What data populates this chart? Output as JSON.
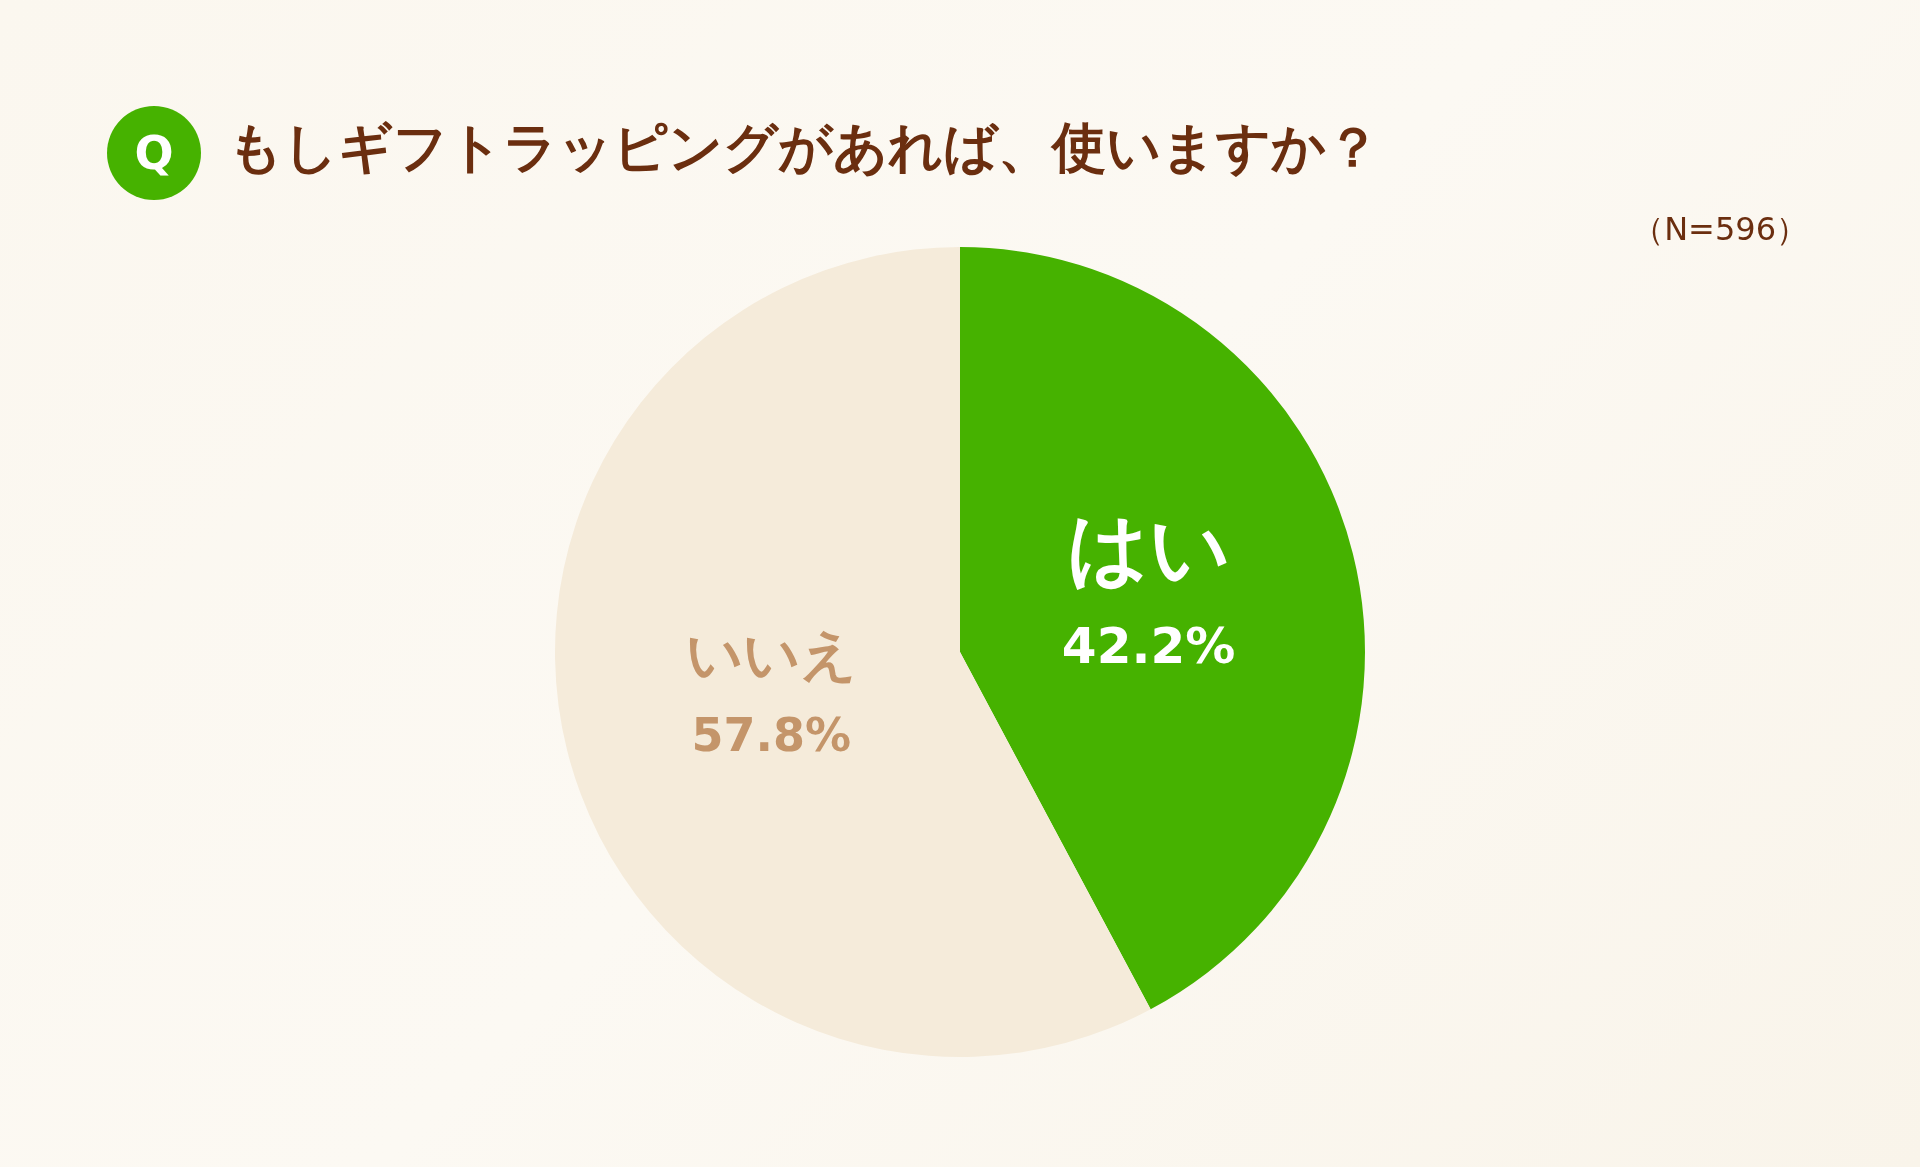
{
  "chart_data": {
    "type": "pie",
    "title": "もしギフトラッピングがあれば、使いますか？",
    "categories": [
      "はい",
      "いいえ"
    ],
    "values": [
      42.2,
      57.8
    ],
    "colors": [
      "#46b200",
      "#f5ebda"
    ],
    "value_labels": [
      "42.2%",
      "57.8%"
    ],
    "annotations": [
      "Q",
      "（N=596）"
    ],
    "legend": false
  }
}
